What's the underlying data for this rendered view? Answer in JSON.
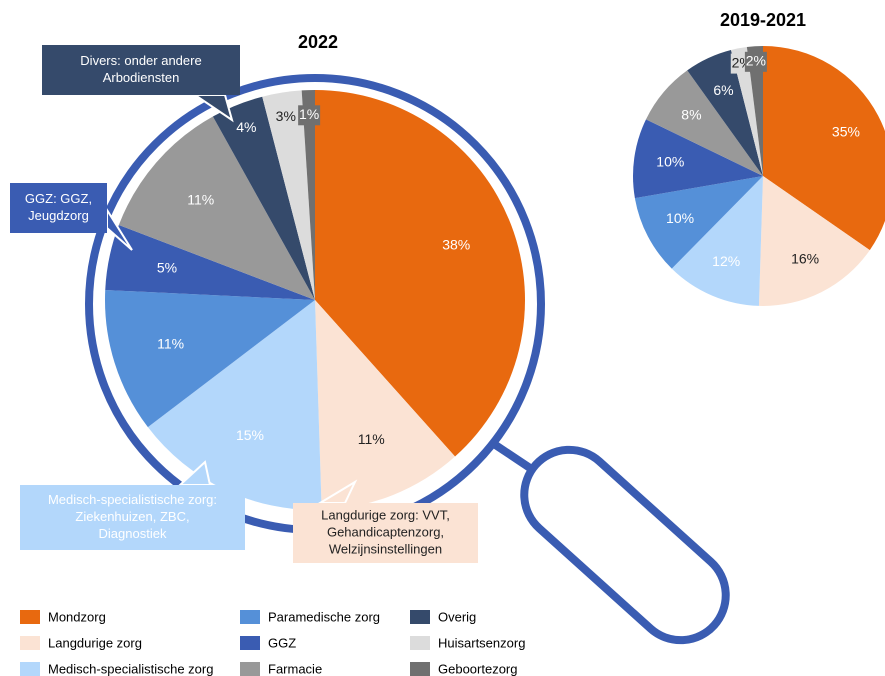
{
  "chart_data": [
    {
      "type": "pie",
      "title": "2022",
      "categories": [
        "Mondzorg",
        "Langdurige zorg",
        "Medisch-specialistische zorg",
        "Paramedische zorg",
        "GGZ",
        "Farmacie",
        "Overig",
        "Huisartsenzorg",
        "Geboortezorg"
      ],
      "colors": [
        "#e8690f",
        "#fbe3d4",
        "#b3d7fb",
        "#5590d8",
        "#3a5cb2",
        "#999999",
        "#354a6b",
        "#dcdcdc",
        "#707070"
      ],
      "values": [
        38,
        11,
        15,
        11,
        5,
        11,
        4,
        3,
        1
      ],
      "value_labels": [
        "38%",
        "11%",
        "15%",
        "11%",
        "5%",
        "11%",
        "4%",
        "3%",
        "1%"
      ],
      "annotations": [
        {
          "lines": [
            "Divers: onder andere",
            "Arbodiensten"
          ],
          "color": "#354a6b"
        },
        {
          "lines": [
            "GGZ: GGZ,",
            "Jeugdzorg"
          ],
          "color": "#3a5cb2"
        },
        {
          "lines": [
            "Medisch-specialistische zorg:",
            "Ziekenhuizen, ZBC,",
            "Diagnostiek"
          ],
          "color": "#b3d7fb"
        },
        {
          "lines": [
            "Langdurige zorg: VVT,",
            "Gehandicaptenzorg,",
            "Welzijnsinstellingen"
          ],
          "color": "#fbe3d4"
        }
      ]
    },
    {
      "type": "pie",
      "title": "2019-2021",
      "values": [
        35,
        16,
        12,
        10,
        10,
        8,
        6,
        2,
        2
      ],
      "value_labels": [
        "35%",
        "16%",
        "12%",
        "10%",
        "10%",
        "8%",
        "6%",
        "2%",
        "2%"
      ]
    }
  ]
}
